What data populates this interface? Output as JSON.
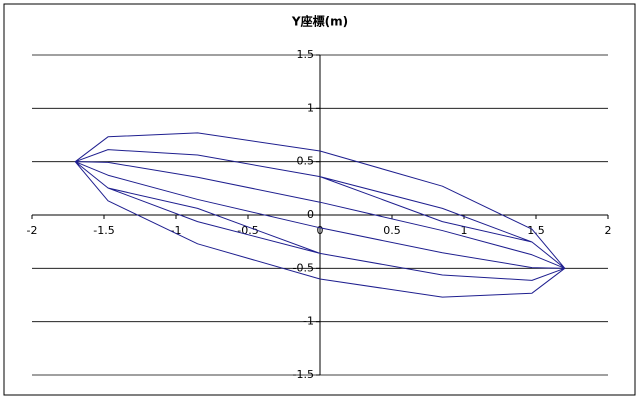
{
  "chart_data": {
    "type": "line",
    "title": "Y座標(m)",
    "x": [
      1.7,
      1.472,
      0.85,
      0,
      -0.85,
      -1.472,
      -1.7,
      -1.472,
      -0.85,
      0,
      0.85,
      1.472,
      1.7,
      1.472,
      0.85,
      0,
      -0.85,
      -1.472,
      -1.7,
      -1.472,
      -0.85,
      0,
      0.85,
      1.472,
      1.7,
      1.472,
      0.85,
      0,
      -0.85,
      -1.472,
      -1.7,
      -1.472,
      -0.85,
      0,
      0.85,
      1.472,
      1.7,
      1.472,
      0.85,
      0,
      -0.85,
      -1.472,
      -1.7,
      -1.472,
      -0.85,
      0,
      0.85,
      1.472,
      1.7,
      1.472,
      0.85,
      0,
      -0.85,
      -1.472,
      -1.7,
      -1.472,
      -0.85,
      0,
      0.85,
      1.472,
      1.7
    ],
    "series": [
      {
        "color": "#1f1f8f",
        "values": [
          -0.5,
          -0.133,
          0.27,
          0.6,
          0.77,
          0.733,
          0.5,
          0.133,
          -0.27,
          -0.6,
          -0.77,
          -0.733,
          -0.5,
          -0.253,
          0.062,
          0.36,
          0.562,
          0.613,
          0.5,
          0.253,
          -0.062,
          -0.36,
          -0.562,
          -0.613,
          -0.5,
          -0.373,
          -0.146,
          0.12,
          0.354,
          0.493,
          0.5,
          0.373,
          0.146,
          -0.12,
          -0.354,
          -0.493,
          -0.5,
          -0.493,
          -0.354,
          -0.12,
          0.146,
          0.373,
          0.5,
          0.493,
          0.354,
          0.12,
          -0.146,
          -0.373,
          -0.5,
          -0.613,
          -0.562,
          -0.36,
          0.062,
          0.253,
          0.5,
          0.613,
          0.562,
          0.36,
          -0.062,
          -0.253,
          -0.5
        ]
      }
    ],
    "xlim": [
      -2,
      2
    ],
    "xticks": [
      -2,
      -1.5,
      -1,
      -0.5,
      0,
      0.5,
      1,
      1.5,
      2
    ],
    "ylim": [
      -1.5,
      1.5
    ],
    "yticks": [
      -1.5,
      -1,
      -0.5,
      0,
      0.5,
      1,
      1.5
    ],
    "grid": true
  }
}
